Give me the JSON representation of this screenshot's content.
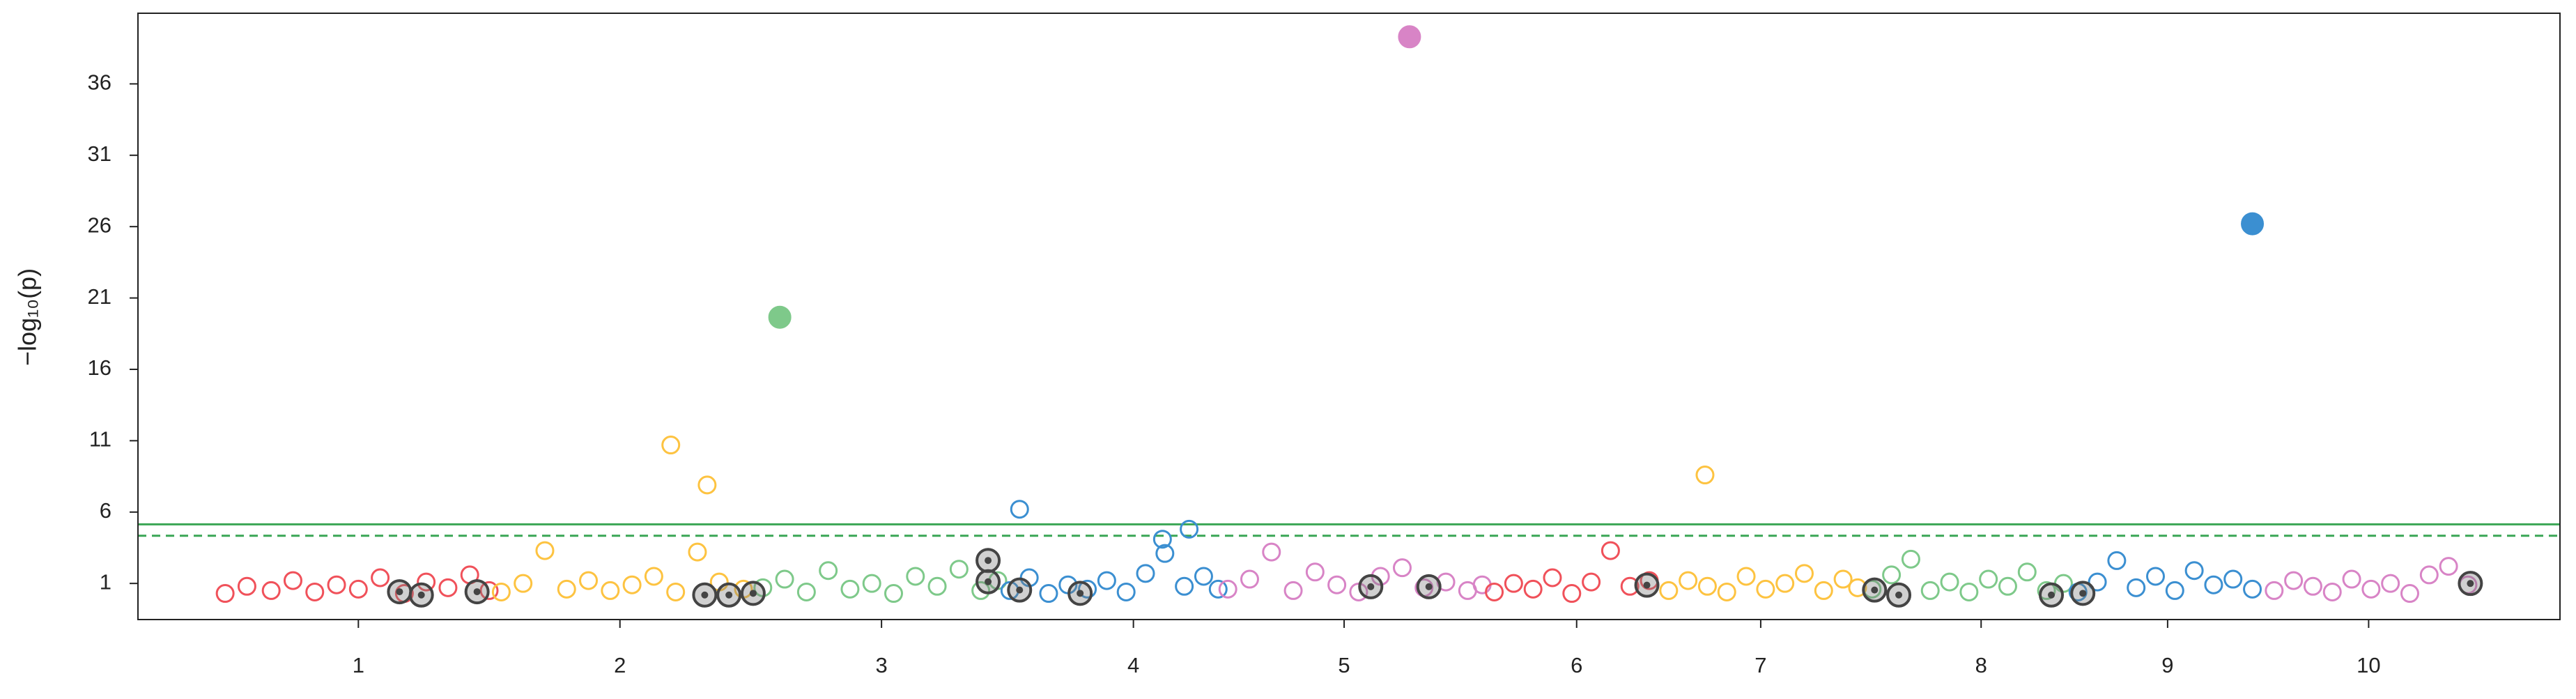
{
  "chart_data": {
    "type": "scatter",
    "y_label": "−log₁₀(p)",
    "xlim": [
      0,
      100
    ],
    "ylim": [
      -1.53,
      40.95
    ],
    "xticks": [
      {
        "value": 9.1,
        "label": "1"
      },
      {
        "value": 19.9,
        "label": "2"
      },
      {
        "value": 30.7,
        "label": "3"
      },
      {
        "value": 41.1,
        "label": "4"
      },
      {
        "value": 49.8,
        "label": "5"
      },
      {
        "value": 59.4,
        "label": "6"
      },
      {
        "value": 67.0,
        "label": "7"
      },
      {
        "value": 76.1,
        "label": "8"
      },
      {
        "value": 83.8,
        "label": "9"
      },
      {
        "value": 92.1,
        "label": "10"
      }
    ],
    "yticks": [
      1,
      6,
      11,
      16,
      21,
      26,
      31,
      36
    ],
    "grid": false,
    "hlines": [
      {
        "value": 5.14,
        "color": "#3aa655",
        "style": "solid"
      },
      {
        "value": 4.34,
        "color": "#3aa655",
        "style": "dashed"
      }
    ],
    "series": [
      {
        "color": "#f0515a",
        "marker": "open",
        "x": [
          3.6,
          4.5,
          5.5,
          6.4,
          7.3,
          8.2,
          9.1,
          10.0,
          11.0,
          11.9,
          12.8,
          13.7,
          14.5
        ],
        "values": [
          0.3,
          0.8,
          0.5,
          1.2,
          0.4,
          0.9,
          0.6,
          1.4,
          0.3,
          1.1,
          0.7,
          1.6,
          0.5
        ]
      },
      {
        "color": "#fdc341",
        "marker": "open",
        "x": [
          15,
          15.9,
          16.8,
          17.7,
          18.6,
          19.5,
          20.4,
          21.3,
          22.0,
          22.2,
          23.1,
          23.5,
          24.0,
          25.0
        ],
        "values": [
          0.4,
          1.0,
          3.3,
          0.6,
          1.2,
          0.5,
          0.9,
          1.5,
          10.7,
          0.4,
          3.2,
          7.9,
          1.1,
          0.6
        ]
      },
      {
        "color": "#7ec98a",
        "marker": "open",
        "x": [
          25.8,
          26.7,
          27.6,
          28.5,
          29.4,
          30.3,
          31.2,
          32.1,
          33.0,
          33.9,
          34.8,
          35.5
        ],
        "values": [
          0.7,
          1.3,
          0.4,
          1.9,
          0.6,
          1.0,
          0.3,
          1.5,
          0.8,
          2.0,
          0.5,
          1.2
        ]
      },
      {
        "color": "#7ec98a",
        "marker": "filled",
        "x": [
          26.5
        ],
        "values": [
          19.65
        ]
      },
      {
        "color": "#3b8fd1",
        "marker": "open",
        "x": [
          36,
          36.4,
          36.8,
          37.6,
          38.4,
          39.2,
          40,
          40.8,
          41.6,
          42.3,
          42.4,
          43.2,
          43.4,
          44,
          44.6
        ],
        "values": [
          0.5,
          6.2,
          1.4,
          0.3,
          0.9,
          0.6,
          1.2,
          0.4,
          1.7,
          4.1,
          3.1,
          0.8,
          4.8,
          1.5,
          0.6
        ]
      },
      {
        "color": "#d884c6",
        "marker": "open",
        "x": [
          45,
          45.9,
          46.8,
          47.7,
          48.6,
          49.5,
          50.4,
          51.3,
          52.2,
          53.1,
          54,
          54.9,
          55.5
        ],
        "values": [
          0.6,
          1.3,
          3.2,
          0.5,
          1.8,
          0.9,
          0.4,
          1.5,
          2.1,
          0.7,
          1.1,
          0.5,
          0.9
        ]
      },
      {
        "color": "#d884c6",
        "marker": "filled",
        "x": [
          52.5
        ],
        "values": [
          39.3
        ]
      },
      {
        "color": "#f0515a",
        "marker": "open",
        "x": [
          56,
          56.8,
          57.6,
          58.4,
          59.2,
          60,
          60.8,
          61.6,
          62.4
        ],
        "values": [
          0.4,
          1.0,
          0.6,
          1.4,
          0.3,
          1.1,
          3.3,
          0.8,
          1.2
        ]
      },
      {
        "color": "#fdc341",
        "marker": "open",
        "x": [
          63.2,
          64,
          64.7,
          64.8,
          65.6,
          66.4,
          67.2,
          68,
          68.8,
          69.6,
          70.4,
          71
        ],
        "values": [
          0.5,
          1.2,
          8.6,
          0.8,
          0.4,
          1.5,
          0.6,
          1.0,
          1.7,
          0.5,
          1.3,
          0.7
        ]
      },
      {
        "color": "#7ec98a",
        "marker": "open",
        "x": [
          71.6,
          72.4,
          73.2,
          74,
          74.8,
          75.6,
          76.4,
          77.2,
          78,
          78.8,
          79.5
        ],
        "values": [
          0.6,
          1.6,
          2.7,
          0.5,
          1.1,
          0.4,
          1.3,
          0.8,
          1.8,
          0.5,
          1.0
        ]
      },
      {
        "color": "#3b8fd1",
        "marker": "open",
        "x": [
          80.1,
          80.9,
          81.7,
          82.5,
          83.3,
          84.1,
          84.9,
          85.7,
          86.5,
          87.3
        ],
        "values": [
          0.4,
          1.1,
          2.6,
          0.7,
          1.5,
          0.5,
          1.9,
          0.9,
          1.3,
          0.6
        ]
      },
      {
        "color": "#3b8fd1",
        "marker": "filled",
        "x": [
          87.3
        ],
        "values": [
          26.2
        ]
      },
      {
        "color": "#d884c6",
        "marker": "open",
        "x": [
          88.2,
          89,
          89.8,
          90.6,
          91.4,
          92.2,
          93,
          93.8,
          94.6,
          95.4,
          96.2
        ],
        "values": [
          0.5,
          1.2,
          0.8,
          0.4,
          1.3,
          0.6,
          1.0,
          0.3,
          1.6,
          2.2,
          0.9
        ]
      },
      {
        "color": "#444444",
        "marker": "ringed",
        "x": [
          10.8,
          11.7,
          14.0,
          23.4,
          24.4,
          25.4,
          35.1,
          35.1,
          36.4,
          38.9,
          50.9,
          53.3,
          62.3,
          71.7,
          72.7,
          79.0,
          80.3,
          96.3
        ],
        "values": [
          0.42,
          0.19,
          0.42,
          0.19,
          0.19,
          0.31,
          2.61,
          1.12,
          0.54,
          0.31,
          0.77,
          0.77,
          0.88,
          0.54,
          0.19,
          0.19,
          0.31,
          1.0
        ]
      }
    ]
  }
}
